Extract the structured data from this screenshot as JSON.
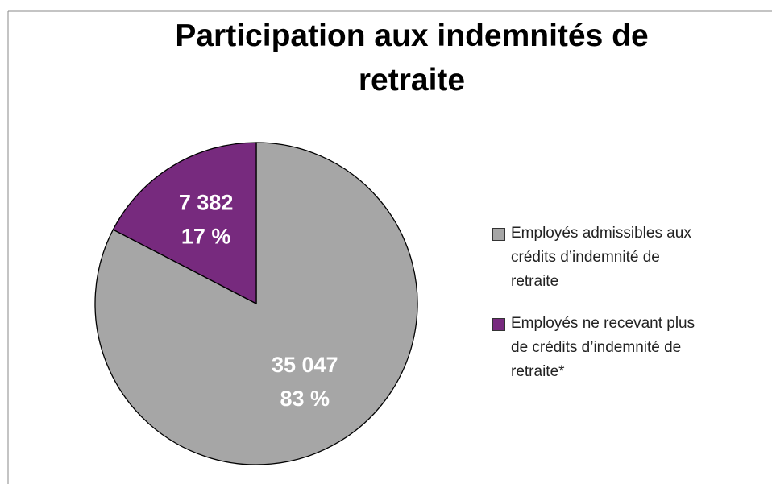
{
  "chart_data": {
    "type": "pie",
    "title": "Participation aux indemnités de retraite",
    "categories": [
      "Employés admissibles aux crédits d’indemnité de retraite",
      "Employés ne recevant plus de crédits d’indemnité de retraite*"
    ],
    "values": [
      35047,
      7382
    ],
    "value_labels": [
      "35 047",
      "7 382"
    ],
    "percentages": [
      83,
      17
    ],
    "percentage_labels": [
      "83 %",
      "17 %"
    ],
    "colors": [
      "#a6a6a6",
      "#772a7e"
    ],
    "legend": "right"
  }
}
